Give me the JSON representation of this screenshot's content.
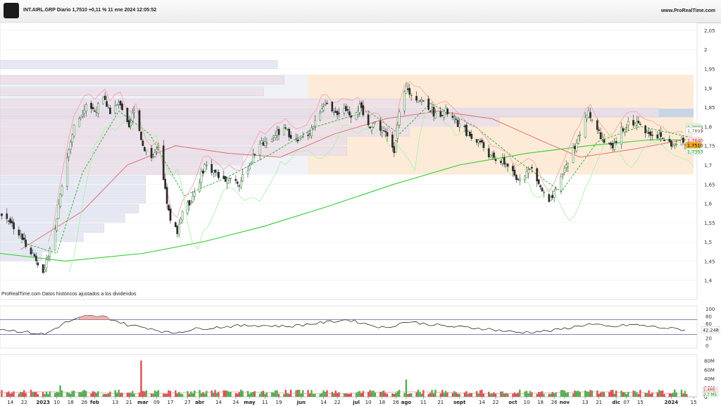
{
  "header": {
    "title": "INT.AIRL.GRP Diario 1,7510 +0,11 % 11 ene 2024 12:05:52",
    "site": "www.ProRealTime.com"
  },
  "footer": {
    "source": "ProRealTime.com Datos históricos ajustados a los dividendos"
  },
  "colors": {
    "up": "#2e8b2e",
    "down": "#cc2222",
    "sma200": "#33cc33",
    "sma50": "#e07070",
    "kijun": "#f4a0a0",
    "senkou": "#a8f0a8",
    "fast_ma": "#22aa22",
    "rsi": "#111111",
    "band_area": "#fde8d0",
    "value_area": "#dde3f0",
    "poc": "#bcd0e6"
  },
  "chart_data": [
    {
      "type": "candlestick",
      "name": "price",
      "ylim": [
        1.35,
        2.07
      ],
      "yticks": [
        "2,05",
        "2",
        "1,95",
        "1,9",
        "1,85",
        "1,8",
        "1,75",
        "1,7",
        "1,65",
        "1,6",
        "1,55",
        "1,5",
        "1,45",
        "1,4"
      ],
      "ytick_values": [
        2.05,
        2.0,
        1.95,
        1.9,
        1.85,
        1.8,
        1.75,
        1.7,
        1.65,
        1.6,
        1.55,
        1.5,
        1.45,
        1.4
      ],
      "x_labels": [
        "14",
        "22",
        "2023",
        "10",
        "18",
        "26",
        "feb",
        "13",
        "21",
        "mar",
        "09",
        "17",
        "27",
        "abr",
        "14",
        "24",
        "may",
        "11",
        "19",
        "jun",
        "14",
        "22",
        "jul",
        "10",
        "18",
        "26",
        "ago",
        "11",
        "21",
        "sept",
        "14",
        "22",
        "oct",
        "10",
        "18",
        "26",
        "nov",
        "13",
        "21",
        "dic",
        "07",
        "15",
        "2024",
        "15"
      ],
      "x_label_dates": [
        "2022-12-14",
        "2022-12-22",
        "2023-01-02",
        "2023-01-10",
        "2023-01-18",
        "2023-01-26",
        "2023-02-01",
        "2023-02-13",
        "2023-02-21",
        "2023-03-01",
        "2023-03-09",
        "2023-03-17",
        "2023-03-27",
        "2023-04-03",
        "2023-04-14",
        "2023-04-24",
        "2023-05-02",
        "2023-05-11",
        "2023-05-19",
        "2023-06-01",
        "2023-06-14",
        "2023-06-22",
        "2023-07-03",
        "2023-07-10",
        "2023-07-18",
        "2023-07-26",
        "2023-08-01",
        "2023-08-11",
        "2023-08-21",
        "2023-09-01",
        "2023-09-14",
        "2023-09-22",
        "2023-10-02",
        "2023-10-10",
        "2023-10-18",
        "2023-10-26",
        "2023-11-01",
        "2023-11-13",
        "2023-11-21",
        "2023-12-01",
        "2023-12-07",
        "2023-12-15",
        "2024-01-02",
        "2024-01-15"
      ],
      "x_range": [
        "2022-12-08",
        "2024-01-17"
      ],
      "highlighted_x_labels": [
        "2023",
        "feb",
        "mar",
        "abr",
        "may",
        "jun",
        "jul",
        "ago",
        "sept",
        "oct",
        "nov",
        "dic",
        "2024"
      ],
      "price_path": [
        [
          "2022-12-08",
          1.57
        ],
        [
          "2022-12-13",
          1.56
        ],
        [
          "2022-12-19",
          1.52
        ],
        [
          "2022-12-27",
          1.47
        ],
        [
          "2023-01-03",
          1.42
        ],
        [
          "2023-01-05",
          1.47
        ],
        [
          "2023-01-09",
          1.53
        ],
        [
          "2023-01-12",
          1.63
        ],
        [
          "2023-01-17",
          1.74
        ],
        [
          "2023-01-20",
          1.8
        ],
        [
          "2023-01-24",
          1.83
        ],
        [
          "2023-01-27",
          1.86
        ],
        [
          "2023-02-01",
          1.84
        ],
        [
          "2023-02-06",
          1.87
        ],
        [
          "2023-02-10",
          1.84
        ],
        [
          "2023-02-16",
          1.86
        ],
        [
          "2023-02-21",
          1.79
        ],
        [
          "2023-02-24",
          1.85
        ],
        [
          "2023-03-01",
          1.75
        ],
        [
          "2023-03-06",
          1.72
        ],
        [
          "2023-03-10",
          1.74
        ],
        [
          "2023-03-14",
          1.63
        ],
        [
          "2023-03-17",
          1.55
        ],
        [
          "2023-03-21",
          1.53
        ],
        [
          "2023-03-24",
          1.58
        ],
        [
          "2023-03-28",
          1.6
        ],
        [
          "2023-04-03",
          1.66
        ],
        [
          "2023-04-06",
          1.7
        ],
        [
          "2023-04-12",
          1.68
        ],
        [
          "2023-04-17",
          1.66
        ],
        [
          "2023-04-21",
          1.67
        ],
        [
          "2023-04-26",
          1.65
        ],
        [
          "2023-05-02",
          1.7
        ],
        [
          "2023-05-08",
          1.76
        ],
        [
          "2023-05-12",
          1.75
        ],
        [
          "2023-05-17",
          1.78
        ],
        [
          "2023-05-23",
          1.79
        ],
        [
          "2023-05-30",
          1.76
        ],
        [
          "2023-06-05",
          1.78
        ],
        [
          "2023-06-09",
          1.81
        ],
        [
          "2023-06-14",
          1.86
        ],
        [
          "2023-06-20",
          1.83
        ],
        [
          "2023-06-26",
          1.85
        ],
        [
          "2023-06-30",
          1.83
        ],
        [
          "2023-07-05",
          1.85
        ],
        [
          "2023-07-10",
          1.8
        ],
        [
          "2023-07-14",
          1.81
        ],
        [
          "2023-07-20",
          1.78
        ],
        [
          "2023-07-25",
          1.74
        ],
        [
          "2023-07-28",
          1.83
        ],
        [
          "2023-08-01",
          1.9
        ],
        [
          "2023-08-04",
          1.88
        ],
        [
          "2023-08-09",
          1.87
        ],
        [
          "2023-08-14",
          1.85
        ],
        [
          "2023-08-18",
          1.83
        ],
        [
          "2023-08-24",
          1.84
        ],
        [
          "2023-08-30",
          1.81
        ],
        [
          "2023-09-04",
          1.79
        ],
        [
          "2023-09-08",
          1.77
        ],
        [
          "2023-09-13",
          1.76
        ],
        [
          "2023-09-19",
          1.72
        ],
        [
          "2023-09-25",
          1.71
        ],
        [
          "2023-09-29",
          1.7
        ],
        [
          "2023-10-04",
          1.66
        ],
        [
          "2023-10-09",
          1.68
        ],
        [
          "2023-10-13",
          1.69
        ],
        [
          "2023-10-18",
          1.64
        ],
        [
          "2023-10-23",
          1.6
        ],
        [
          "2023-10-27",
          1.63
        ],
        [
          "2023-11-01",
          1.69
        ],
        [
          "2023-11-06",
          1.74
        ],
        [
          "2023-11-10",
          1.78
        ],
        [
          "2023-11-15",
          1.84
        ],
        [
          "2023-11-20",
          1.79
        ],
        [
          "2023-11-24",
          1.76
        ],
        [
          "2023-11-29",
          1.74
        ],
        [
          "2023-12-04",
          1.79
        ],
        [
          "2023-12-08",
          1.81
        ],
        [
          "2023-12-13",
          1.81
        ],
        [
          "2023-12-18",
          1.79
        ],
        [
          "2023-12-22",
          1.78
        ],
        [
          "2023-12-28",
          1.77
        ],
        [
          "2024-01-03",
          1.75
        ],
        [
          "2024-01-08",
          1.76
        ],
        [
          "2024-01-11",
          1.751
        ]
      ],
      "sma200_path": [
        [
          "2022-12-08",
          1.47
        ],
        [
          "2023-01-15",
          1.45
        ],
        [
          "2023-03-01",
          1.47
        ],
        [
          "2023-04-05",
          1.5
        ],
        [
          "2023-05-10",
          1.54
        ],
        [
          "2023-06-15",
          1.59
        ],
        [
          "2023-07-25",
          1.65
        ],
        [
          "2023-09-01",
          1.7
        ],
        [
          "2023-10-10",
          1.73
        ],
        [
          "2023-11-15",
          1.75
        ],
        [
          "2023-12-20",
          1.765
        ],
        [
          "2024-01-15",
          1.765
        ]
      ],
      "sma50_path": [
        [
          "2022-12-20",
          1.48
        ],
        [
          "2023-01-25",
          1.58
        ],
        [
          "2023-02-20",
          1.7
        ],
        [
          "2023-03-20",
          1.75
        ],
        [
          "2023-04-20",
          1.73
        ],
        [
          "2023-05-20",
          1.72
        ],
        [
          "2023-06-20",
          1.78
        ],
        [
          "2023-07-20",
          1.82
        ],
        [
          "2023-08-20",
          1.84
        ],
        [
          "2023-09-20",
          1.82
        ],
        [
          "2023-10-20",
          1.76
        ],
        [
          "2023-11-10",
          1.72
        ],
        [
          "2023-12-10",
          1.74
        ],
        [
          "2024-01-15",
          1.77
        ]
      ],
      "fast_ma_path": [
        [
          "2022-12-20",
          1.5
        ],
        [
          "2023-01-10",
          1.47
        ],
        [
          "2023-01-25",
          1.68
        ],
        [
          "2023-02-15",
          1.84
        ],
        [
          "2023-03-05",
          1.78
        ],
        [
          "2023-03-25",
          1.62
        ],
        [
          "2023-04-20",
          1.67
        ],
        [
          "2023-05-15",
          1.73
        ],
        [
          "2023-06-10",
          1.8
        ],
        [
          "2023-07-10",
          1.84
        ],
        [
          "2023-07-28",
          1.78
        ],
        [
          "2023-08-15",
          1.86
        ],
        [
          "2023-09-10",
          1.8
        ],
        [
          "2023-10-05",
          1.71
        ],
        [
          "2023-10-30",
          1.63
        ],
        [
          "2023-11-20",
          1.76
        ],
        [
          "2023-12-15",
          1.8
        ],
        [
          "2024-01-15",
          1.77
        ]
      ],
      "volume_profile": [
        {
          "price": 1.96,
          "length": 0.4
        },
        {
          "price": 1.92,
          "length": 0.41
        },
        {
          "price": 1.89,
          "length": 0.38
        },
        {
          "price": 1.86,
          "length": 0.62
        },
        {
          "price": 1.835,
          "length": 0.95
        },
        {
          "price": 1.81,
          "length": 0.72
        },
        {
          "price": 1.785,
          "length": 0.59
        },
        {
          "price": 1.76,
          "length": 0.5
        },
        {
          "price": 1.735,
          "length": 0.5
        },
        {
          "price": 1.71,
          "length": 0.35
        },
        {
          "price": 1.685,
          "length": 0.29
        },
        {
          "price": 1.66,
          "length": 0.21
        },
        {
          "price": 1.635,
          "length": 0.21
        },
        {
          "price": 1.61,
          "length": 0.21
        },
        {
          "price": 1.585,
          "length": 0.2
        },
        {
          "price": 1.56,
          "length": 0.18
        },
        {
          "price": 1.535,
          "length": 0.15
        },
        {
          "price": 1.51,
          "length": 0.12
        },
        {
          "price": 1.485,
          "length": 0.08
        },
        {
          "price": 1.46,
          "length": 0.06
        }
      ],
      "value_area": {
        "from_price": 1.675,
        "to_price": 1.935
      },
      "poc_price": 1.835,
      "right_badges": [
        {
          "label": "1,7983",
          "value": 1.7983,
          "bg": "#dff5df",
          "fg": "#1f8a1f"
        },
        {
          "label": "1,7906",
          "value": 1.7906,
          "bg": "#ffe2e2",
          "fg": "#b33"
        },
        {
          "label": "1,7891",
          "value": 1.7891,
          "bg": "#fdfdfd",
          "fg": "#777"
        },
        {
          "label": "1,7640",
          "value": 1.764,
          "bg": "#fbe3e3",
          "fg": "#b33"
        },
        {
          "label": "1,7510",
          "value": 1.751,
          "bg": "#f5a623",
          "fg": "#000"
        },
        {
          "label": "1,7353",
          "value": 1.7353,
          "bg": "#e3f7e3",
          "fg": "#1f8a1f"
        }
      ]
    },
    {
      "type": "line",
      "name": "RSI",
      "ylim": [
        0,
        100
      ],
      "yticks": [
        "100",
        "80",
        "60",
        "40",
        "20",
        "0"
      ],
      "ytick_values": [
        100,
        80,
        60,
        40,
        20,
        0
      ],
      "levels": [
        70,
        30
      ],
      "last_value": "42,248",
      "path": [
        [
          "2022-12-08",
          45
        ],
        [
          "2022-12-20",
          38
        ],
        [
          "2023-01-03",
          30
        ],
        [
          "2023-01-15",
          62
        ],
        [
          "2023-01-27",
          80
        ],
        [
          "2023-02-07",
          78
        ],
        [
          "2023-02-20",
          56
        ],
        [
          "2023-03-05",
          47
        ],
        [
          "2023-03-17",
          33
        ],
        [
          "2023-04-01",
          45
        ],
        [
          "2023-04-20",
          52
        ],
        [
          "2023-05-05",
          55
        ],
        [
          "2023-05-25",
          52
        ],
        [
          "2023-06-15",
          63
        ],
        [
          "2023-06-28",
          70
        ],
        [
          "2023-07-20",
          47
        ],
        [
          "2023-08-01",
          65
        ],
        [
          "2023-08-25",
          52
        ],
        [
          "2023-09-15",
          46
        ],
        [
          "2023-10-05",
          35
        ],
        [
          "2023-10-25",
          40
        ],
        [
          "2023-11-15",
          58
        ],
        [
          "2023-11-28",
          50
        ],
        [
          "2023-12-10",
          57
        ],
        [
          "2023-12-28",
          48
        ],
        [
          "2024-01-11",
          42.248
        ]
      ]
    },
    {
      "type": "bar",
      "name": "volume",
      "ylim": [
        0,
        90000000
      ],
      "yticks": [
        "80M",
        "60M",
        "40M",
        "20M",
        "0"
      ],
      "ytick_values": [
        80000000,
        60000000,
        40000000,
        20000000,
        0
      ],
      "last_value_labels": [
        "1,4ME",
        "2,7 MS"
      ],
      "notable_bars": [
        {
          "date": "2023-02-28",
          "value": 80000000,
          "direction": "down"
        },
        {
          "date": "2023-08-01",
          "value": 38000000,
          "direction": "up"
        },
        {
          "date": "2023-01-12",
          "value": 25000000,
          "direction": "up"
        }
      ]
    }
  ]
}
